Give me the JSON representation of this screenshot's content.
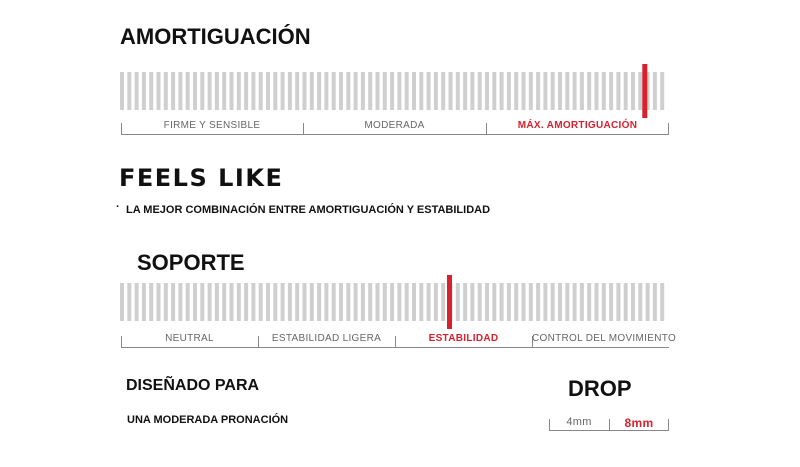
{
  "cushioning": {
    "title": "AMORTIGUACIÓN",
    "segments": [
      "FIRME Y SENSIBLE",
      "MODERADA",
      "MÁX. AMORTIGUACIÓN"
    ],
    "active_segment": 2,
    "level_fraction": 0.955
  },
  "feels_like": {
    "title": "FEELS LIKE",
    "bullet": "·",
    "text": "LA MEJOR COMBINACIÓN ENTRE AMORTIGUACIÓN Y ESTABILIDAD"
  },
  "support": {
    "title": "SOPORTE",
    "segments": [
      "NEUTRAL",
      "ESTABILIDAD LIGERA",
      "ESTABILIDAD",
      "CONTROL DEL MOVIMIENTO"
    ],
    "active_segment": 2,
    "level_fraction": 0.6
  },
  "designed_for": {
    "title": "DISEÑADO PARA",
    "text": "UNA MODERADA PRONACIÓN"
  },
  "drop": {
    "title": "DROP",
    "options": [
      "4mm",
      "8mm"
    ],
    "active_option": 1
  },
  "colors": {
    "accent": "#d6222e",
    "bar": "#cfcfcf",
    "label": "#666666"
  }
}
